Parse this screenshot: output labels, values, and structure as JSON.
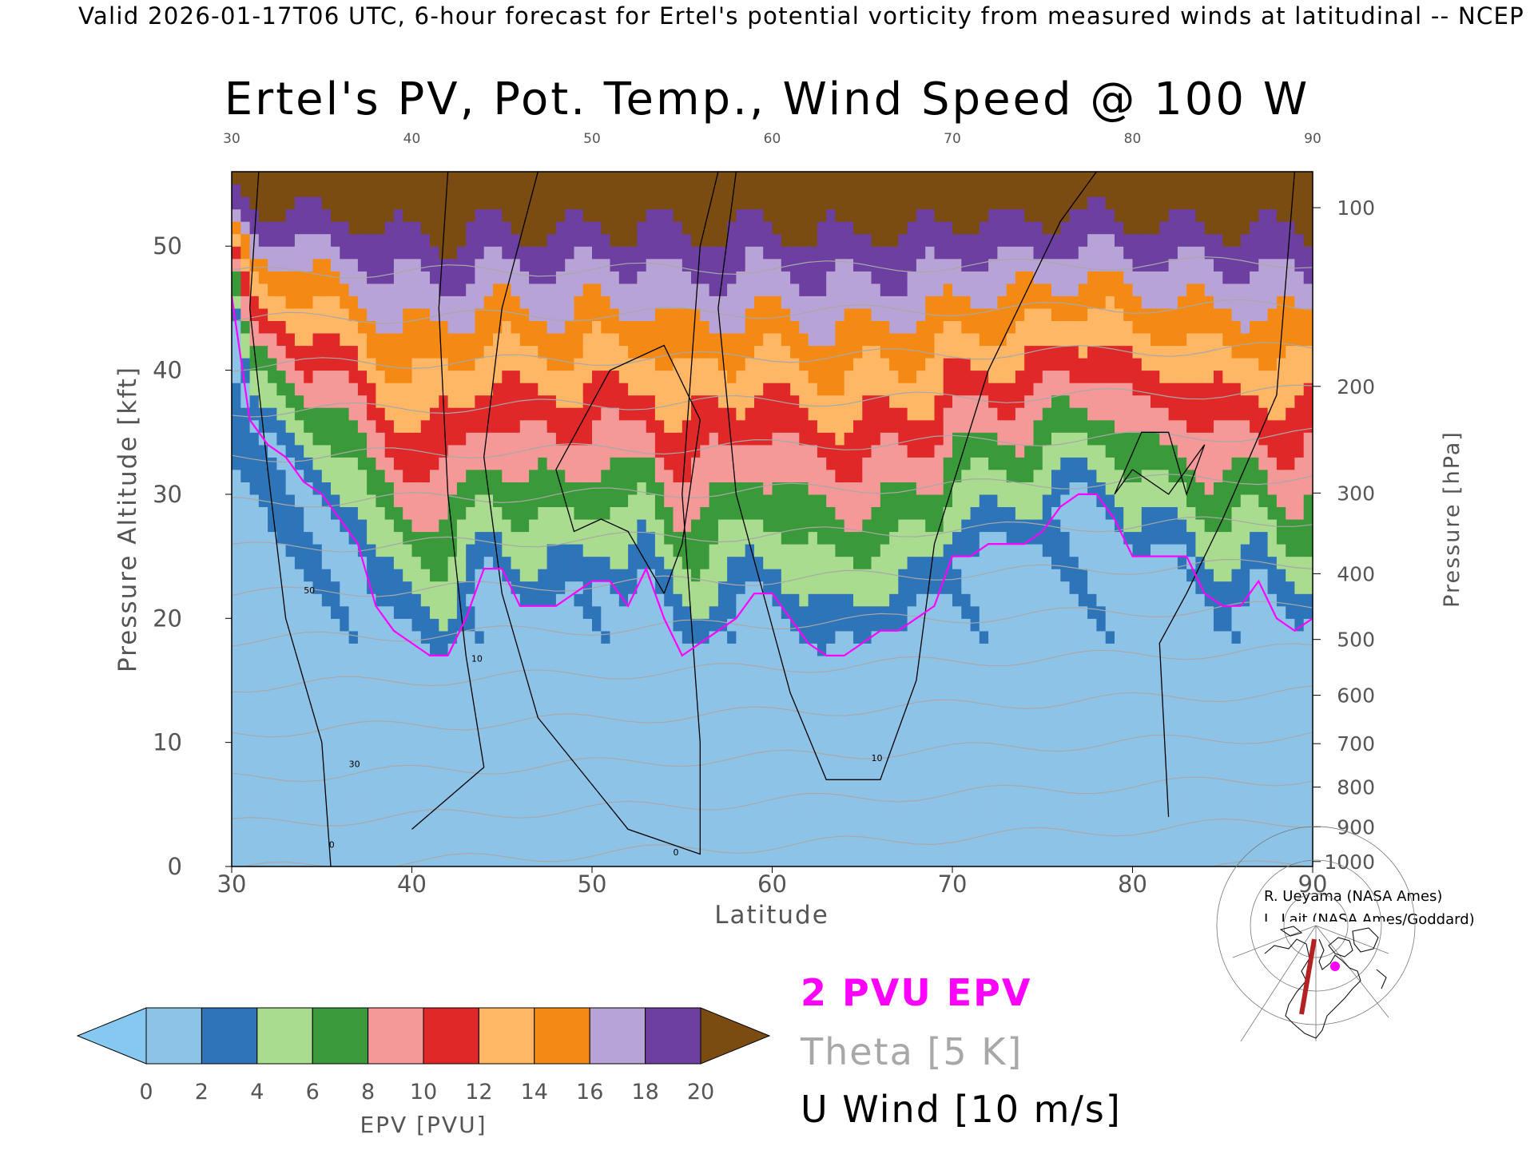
{
  "header": {
    "banner": "Valid 2026-01-17T06 UTC, 6-hour forecast for Ertel's potential vorticity from measured winds at latitudinal -- NCEP"
  },
  "chart_data": {
    "type": "heatmap",
    "title": "Ertel's PV, Pot. Temp., Wind Speed @ 100 W",
    "xlabel": "Latitude",
    "ylabel": "Pressure Altitude [kft]",
    "ylabel_right": "Pressure [hPa]",
    "xlim": [
      30,
      90
    ],
    "ylim": [
      0,
      56
    ],
    "x_ticks": [
      30,
      40,
      50,
      60,
      70,
      80,
      90
    ],
    "y_ticks": [
      0,
      10,
      20,
      30,
      40,
      50
    ],
    "pressure_ticks": [
      {
        "label": "100",
        "kft": 53.1
      },
      {
        "label": "200",
        "kft": 38.7
      },
      {
        "label": "300",
        "kft": 30.1
      },
      {
        "label": "400",
        "kft": 23.6
      },
      {
        "label": "500",
        "kft": 18.3
      },
      {
        "label": "600",
        "kft": 13.8
      },
      {
        "label": "700",
        "kft": 9.9
      },
      {
        "label": "800",
        "kft": 6.4
      },
      {
        "label": "900",
        "kft": 3.2
      },
      {
        "label": "1000",
        "kft": 0.4
      }
    ],
    "colorbar": {
      "label": "EPV [PVU]",
      "ticks": [
        0,
        2,
        4,
        6,
        8,
        10,
        12,
        14,
        16,
        18,
        20
      ],
      "under_color": "#87c8f0",
      "over_color": "#7b4c12",
      "colors": [
        "#8ec3e8",
        "#2d74b8",
        "#a9dc8f",
        "#3a9a3a",
        "#f59898",
        "#e02828",
        "#ffb765",
        "#f48a14",
        "#b8a3d6",
        "#6c3fa0",
        "#f7ec9a"
      ]
    },
    "pv2_tropopause": {
      "x": [
        30,
        31,
        32,
        33,
        34,
        35,
        36,
        37,
        38,
        39,
        40,
        41,
        42,
        43,
        44,
        45,
        46,
        47,
        48,
        49,
        50,
        51,
        52,
        53,
        54,
        55,
        56,
        57,
        58,
        59,
        60,
        61,
        62,
        63,
        64,
        65,
        66,
        67,
        68,
        69,
        70,
        71,
        72,
        73,
        74,
        75,
        76,
        77,
        78,
        79,
        80,
        81,
        82,
        83,
        84,
        85,
        86,
        87,
        88,
        89,
        90
      ],
      "kft": [
        46,
        36,
        34,
        33,
        31,
        30,
        28,
        26,
        21,
        19,
        18,
        17,
        17,
        20,
        24,
        24,
        21,
        21,
        21,
        22,
        23,
        23,
        21,
        24,
        20,
        17,
        18,
        19,
        20,
        22,
        22,
        20,
        18,
        17,
        17,
        18,
        19,
        19,
        20,
        21,
        25,
        25,
        26,
        26,
        26,
        27,
        29,
        30,
        30,
        28,
        25,
        25,
        25,
        25,
        22,
        21,
        21,
        23,
        20,
        19,
        20
      ]
    },
    "theta_contours_K": [
      270,
      280,
      290,
      300,
      310,
      320,
      330,
      340,
      350,
      360,
      370,
      380,
      390,
      400,
      410
    ],
    "theta_interval": "5 K",
    "u_wind_contour_labels": [
      "0",
      "10",
      "30",
      "50"
    ],
    "legend": {
      "pv": "2 PVU EPV",
      "theta": "Theta [5 K]",
      "uwind": "U Wind [10 m/s]",
      "pv_color": "#ff00ff",
      "theta_color": "#a8a8a8",
      "uwind_color": "#000000"
    }
  },
  "credits": {
    "line1": "R. Ueyama (NASA Ames)",
    "line2": "L. Lait (NASA Ames/Goddard)"
  },
  "inset_map": {
    "marker_color": "#ff00ff",
    "section_color": "#b22222"
  }
}
